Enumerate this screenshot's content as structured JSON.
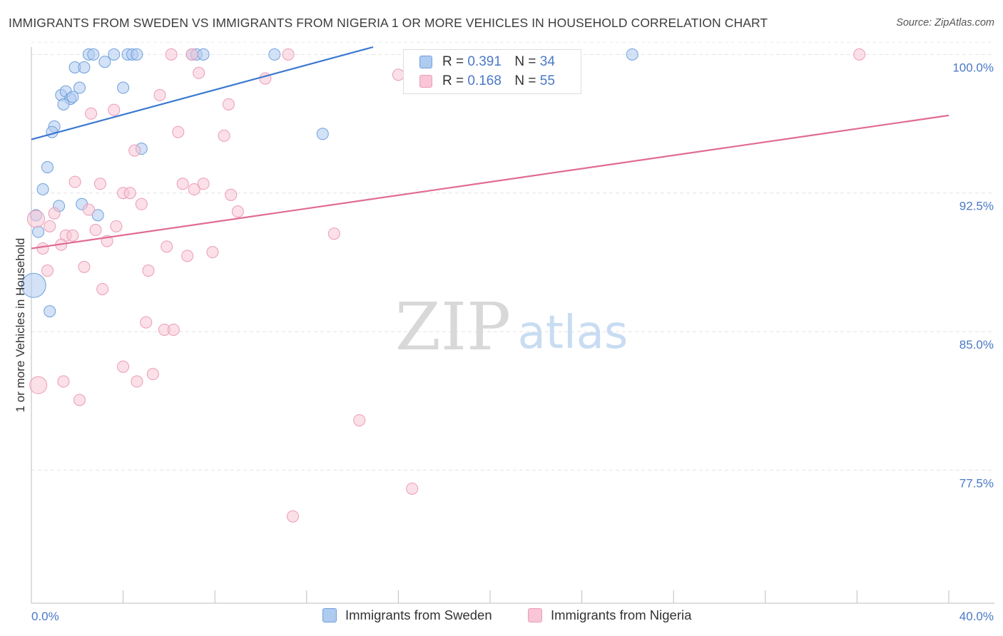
{
  "title": "IMMIGRANTS FROM SWEDEN VS IMMIGRANTS FROM NIGERIA 1 OR MORE VEHICLES IN HOUSEHOLD CORRELATION CHART",
  "source": "Source: ZipAtlas.com",
  "watermark": {
    "zip": "ZIP",
    "atlas": "atlas"
  },
  "legend": {
    "r_label": "R =",
    "n_label": "N =",
    "sweden": {
      "r": "0.391",
      "n": "34"
    },
    "nigeria": {
      "r": "0.168",
      "n": "55"
    }
  },
  "colors": {
    "sweden_fill": "#aecbf0",
    "sweden_stroke": "#6f9fdc",
    "sweden_line": "#3a78d0",
    "nigeria_fill": "#f8c6d6",
    "nigeria_stroke": "#ec9bb6",
    "nigeria_line": "#e06b94",
    "tick_text": "#4a78c7"
  },
  "chart_data": {
    "type": "scatter",
    "title": "IMMIGRANTS FROM SWEDEN VS IMMIGRANTS FROM NIGERIA 1 OR MORE VEHICLES IN HOUSEHOLD CORRELATION CHART",
    "xlabel": "",
    "ylabel": "1 or more Vehicles in Household",
    "xlim": [
      0,
      40
    ],
    "ylim": [
      70.3,
      100.4
    ],
    "x_tick_labels": [
      "0.0%",
      "40.0%"
    ],
    "y_ticks": [
      100.0,
      92.5,
      85.0,
      77.5
    ],
    "y_tick_labels": [
      "100.0%",
      "92.5%",
      "85.0%",
      "77.5%"
    ],
    "grid": true,
    "legend_position": "top-center",
    "series": [
      {
        "name": "Immigrants from Sweden",
        "r": 0.391,
        "n": 34,
        "trend": {
          "x": [
            0,
            14.9
          ],
          "y": [
            95.4,
            100.4
          ]
        },
        "points": [
          {
            "x": 2.5,
            "y": 100.0
          },
          {
            "x": 2.7,
            "y": 100.0
          },
          {
            "x": 3.6,
            "y": 100.0
          },
          {
            "x": 4.2,
            "y": 100.0
          },
          {
            "x": 4.4,
            "y": 100.0
          },
          {
            "x": 4.6,
            "y": 100.0
          },
          {
            "x": 7.0,
            "y": 100.0
          },
          {
            "x": 7.2,
            "y": 100.0
          },
          {
            "x": 7.5,
            "y": 100.0
          },
          {
            "x": 10.6,
            "y": 100.0
          },
          {
            "x": 26.2,
            "y": 100.0
          },
          {
            "x": 3.2,
            "y": 99.6
          },
          {
            "x": 1.9,
            "y": 99.3
          },
          {
            "x": 2.3,
            "y": 99.3
          },
          {
            "x": 2.1,
            "y": 98.2
          },
          {
            "x": 4.0,
            "y": 98.2
          },
          {
            "x": 1.3,
            "y": 97.8
          },
          {
            "x": 1.5,
            "y": 98.0
          },
          {
            "x": 1.7,
            "y": 97.6
          },
          {
            "x": 1.8,
            "y": 97.7
          },
          {
            "x": 1.4,
            "y": 97.3
          },
          {
            "x": 1.0,
            "y": 96.1
          },
          {
            "x": 0.9,
            "y": 95.8
          },
          {
            "x": 12.7,
            "y": 95.7
          },
          {
            "x": 4.8,
            "y": 94.9
          },
          {
            "x": 0.7,
            "y": 93.9
          },
          {
            "x": 0.5,
            "y": 92.7
          },
          {
            "x": 2.2,
            "y": 91.9
          },
          {
            "x": 1.2,
            "y": 91.8
          },
          {
            "x": 2.9,
            "y": 91.3
          },
          {
            "x": 0.2,
            "y": 91.3
          },
          {
            "x": 0.3,
            "y": 90.4
          },
          {
            "x": 0.8,
            "y": 86.1
          },
          {
            "x": 0.1,
            "y": 87.5
          }
        ]
      },
      {
        "name": "Immigrants from Nigeria",
        "r": 0.168,
        "n": 55,
        "trend": {
          "x": [
            0,
            40
          ],
          "y": [
            89.5,
            96.7
          ]
        },
        "points": [
          {
            "x": 6.1,
            "y": 100.0
          },
          {
            "x": 7.0,
            "y": 100.0
          },
          {
            "x": 11.2,
            "y": 100.0
          },
          {
            "x": 36.1,
            "y": 100.0
          },
          {
            "x": 7.3,
            "y": 99.0
          },
          {
            "x": 16.0,
            "y": 98.9
          },
          {
            "x": 10.2,
            "y": 98.7
          },
          {
            "x": 5.6,
            "y": 97.8
          },
          {
            "x": 8.6,
            "y": 97.3
          },
          {
            "x": 3.6,
            "y": 97.0
          },
          {
            "x": 2.6,
            "y": 96.8
          },
          {
            "x": 6.4,
            "y": 95.8
          },
          {
            "x": 8.4,
            "y": 95.6
          },
          {
            "x": 4.5,
            "y": 94.8
          },
          {
            "x": 1.9,
            "y": 93.1
          },
          {
            "x": 3.0,
            "y": 93.0
          },
          {
            "x": 6.6,
            "y": 93.0
          },
          {
            "x": 7.5,
            "y": 93.0
          },
          {
            "x": 7.1,
            "y": 92.7
          },
          {
            "x": 4.0,
            "y": 92.5
          },
          {
            "x": 4.3,
            "y": 92.5
          },
          {
            "x": 8.7,
            "y": 92.4
          },
          {
            "x": 4.8,
            "y": 91.9
          },
          {
            "x": 2.5,
            "y": 91.6
          },
          {
            "x": 9.0,
            "y": 91.5
          },
          {
            "x": 1.0,
            "y": 91.4
          },
          {
            "x": 0.2,
            "y": 91.1
          },
          {
            "x": 0.8,
            "y": 90.7
          },
          {
            "x": 3.7,
            "y": 90.7
          },
          {
            "x": 2.8,
            "y": 90.5
          },
          {
            "x": 1.5,
            "y": 90.2
          },
          {
            "x": 1.8,
            "y": 90.2
          },
          {
            "x": 13.2,
            "y": 90.3
          },
          {
            "x": 3.3,
            "y": 89.9
          },
          {
            "x": 1.3,
            "y": 89.7
          },
          {
            "x": 5.9,
            "y": 89.6
          },
          {
            "x": 0.5,
            "y": 89.5
          },
          {
            "x": 7.9,
            "y": 89.3
          },
          {
            "x": 6.8,
            "y": 89.1
          },
          {
            "x": 2.3,
            "y": 88.5
          },
          {
            "x": 0.7,
            "y": 88.3
          },
          {
            "x": 5.1,
            "y": 88.3
          },
          {
            "x": 3.1,
            "y": 87.3
          },
          {
            "x": 5.0,
            "y": 85.5
          },
          {
            "x": 5.8,
            "y": 85.1
          },
          {
            "x": 6.2,
            "y": 85.1
          },
          {
            "x": 4.0,
            "y": 83.1
          },
          {
            "x": 5.3,
            "y": 82.7
          },
          {
            "x": 1.4,
            "y": 82.3
          },
          {
            "x": 4.6,
            "y": 82.3
          },
          {
            "x": 0.3,
            "y": 82.1
          },
          {
            "x": 2.1,
            "y": 81.3
          },
          {
            "x": 14.3,
            "y": 80.2
          },
          {
            "x": 16.6,
            "y": 76.5
          },
          {
            "x": 11.4,
            "y": 75.0
          }
        ]
      }
    ]
  }
}
